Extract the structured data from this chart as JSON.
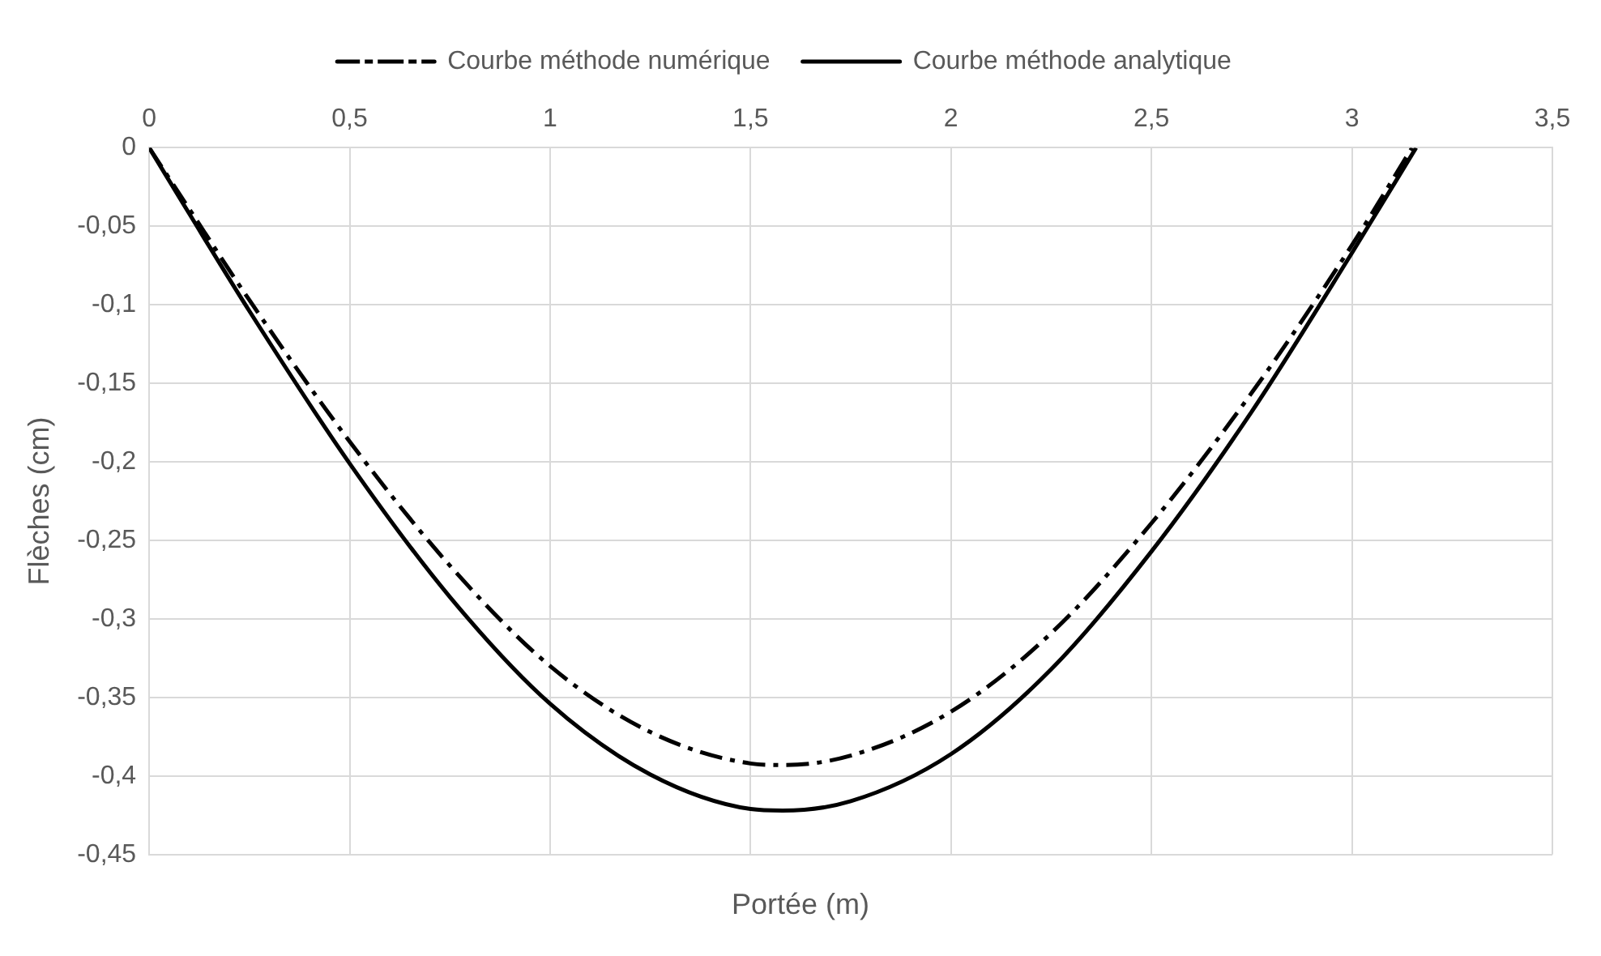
{
  "chart_data": {
    "type": "line",
    "xlabel": "Portée (m)",
    "ylabel": "Flèches (cm)",
    "xlim": [
      0,
      3.5
    ],
    "xticks": [
      {
        "value": 0,
        "label": "0"
      },
      {
        "value": 0.5,
        "label": "0,5"
      },
      {
        "value": 1,
        "label": "1"
      },
      {
        "value": 1.5,
        "label": "1,5"
      },
      {
        "value": 2,
        "label": "2"
      },
      {
        "value": 2.5,
        "label": "2,5"
      },
      {
        "value": 3,
        "label": "3"
      },
      {
        "value": 3.5,
        "label": "3,5"
      }
    ],
    "ylim": [
      -0.45,
      0
    ],
    "yticks": [
      {
        "value": -0.45,
        "label": "-0,45"
      },
      {
        "value": -0.4,
        "label": "-0,4"
      },
      {
        "value": -0.35,
        "label": "-0,35"
      },
      {
        "value": -0.3,
        "label": "-0,3"
      },
      {
        "value": -0.25,
        "label": "-0,25"
      },
      {
        "value": -0.2,
        "label": "-0,2"
      },
      {
        "value": -0.15,
        "label": "-0,15"
      },
      {
        "value": -0.1,
        "label": "-0,1"
      },
      {
        "value": -0.05,
        "label": "-0,05"
      },
      {
        "value": 0,
        "label": "0"
      }
    ],
    "grid": true,
    "legend": "top",
    "marker": "none",
    "series": [
      {
        "name": "Courbe méthode numérique",
        "color": "#000000",
        "line_style": "dashed",
        "x": [
          0,
          0.1,
          0.25,
          0.5,
          0.75,
          1,
          1.25,
          1.5,
          1.58,
          1.75,
          2,
          2.25,
          2.5,
          2.75,
          3,
          3.15
        ],
        "values": [
          0,
          -0.039,
          -0.097,
          -0.187,
          -0.266,
          -0.33,
          -0.372,
          -0.392,
          -0.393,
          -0.387,
          -0.359,
          -0.309,
          -0.239,
          -0.156,
          -0.062,
          0
        ]
      },
      {
        "name": "Courbe méthode analytique",
        "color": "#000000",
        "line_style": "solid",
        "x": [
          0,
          0.1,
          0.25,
          0.5,
          0.75,
          1,
          1.25,
          1.5,
          1.58,
          1.75,
          2,
          2.25,
          2.5,
          2.75,
          3,
          3.16
        ],
        "values": [
          0,
          -0.042,
          -0.104,
          -0.201,
          -0.286,
          -0.354,
          -0.399,
          -0.421,
          -0.422,
          -0.416,
          -0.386,
          -0.332,
          -0.257,
          -0.168,
          -0.067,
          0
        ]
      }
    ]
  }
}
